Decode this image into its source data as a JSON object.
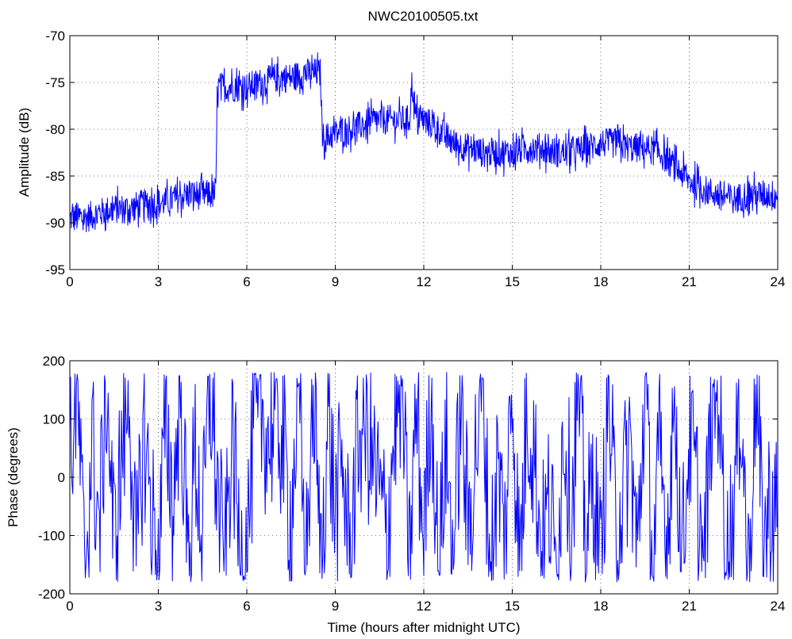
{
  "figure": {
    "title": "NWC20100505.txt"
  },
  "chart_data": [
    {
      "type": "line",
      "title": "NWC20100505.txt",
      "xlabel": "",
      "ylabel": "Amplitude (dB)",
      "xlim": [
        0,
        24
      ],
      "ylim": [
        -95,
        -70
      ],
      "xticks": [
        0,
        3,
        6,
        9,
        12,
        15,
        18,
        21,
        24
      ],
      "yticks": [
        -95,
        -90,
        -85,
        -80,
        -75,
        -70
      ],
      "grid": true,
      "line_color": "#0000ff",
      "series": [
        {
          "x": [
            0,
            0.5,
            1,
            1.5,
            2,
            2.5,
            3,
            3.5,
            4,
            4.5,
            4.95,
            5.0,
            5.5,
            6,
            6.5,
            7,
            7.5,
            8,
            8.5,
            8.55,
            8.6,
            9,
            9.5,
            10,
            10.5,
            11,
            11.5,
            11.6,
            11.7,
            12,
            12.5,
            13,
            13.5,
            14,
            14.5,
            15,
            15.5,
            16,
            16.5,
            17,
            17.5,
            18,
            18.5,
            19,
            19.5,
            20,
            20.5,
            21,
            21.5,
            22,
            22.5,
            23,
            23.5,
            24
          ],
          "y": [
            -89.5,
            -89.5,
            -89,
            -88.5,
            -88.5,
            -88,
            -88,
            -87.5,
            -87,
            -87,
            -87,
            -75.5,
            -75.5,
            -75.5,
            -75,
            -74.5,
            -74.5,
            -74,
            -74,
            -80,
            -81,
            -80.5,
            -80,
            -79.5,
            -79,
            -79,
            -79,
            -75,
            -78.5,
            -79,
            -80,
            -81.5,
            -82,
            -82.5,
            -82.5,
            -82.5,
            -82,
            -82,
            -82.5,
            -82.5,
            -82,
            -81.5,
            -81.5,
            -82,
            -82,
            -82.5,
            -84,
            -85.5,
            -86.5,
            -87,
            -87.5,
            -87,
            -87,
            -87
          ]
        }
      ]
    },
    {
      "type": "line",
      "title": "",
      "xlabel": "Time (hours after midnight UTC)",
      "ylabel": "Phase (degrees)",
      "xlim": [
        0,
        24
      ],
      "ylim": [
        -200,
        200
      ],
      "xticks": [
        0,
        3,
        6,
        9,
        12,
        15,
        18,
        21,
        24
      ],
      "yticks": [
        -200,
        -100,
        0,
        100,
        200
      ],
      "grid": true,
      "line_color": "#0000ff",
      "series": [
        {
          "x": [
            0,
            0.25,
            0.5,
            0.75,
            1,
            1.25,
            1.5,
            1.75,
            2,
            2.25,
            2.5,
            2.75,
            3,
            3.25,
            3.5,
            3.75,
            4,
            4.25,
            4.5,
            4.75,
            5,
            5.25,
            5.5,
            5.75,
            6,
            6.25,
            6.5,
            6.75,
            7,
            7.25,
            7.5,
            7.75,
            8,
            8.25,
            8.5,
            8.75,
            9,
            9.25,
            9.5,
            9.75,
            10,
            10.25,
            10.5,
            10.75,
            11,
            11.25,
            11.5,
            11.75,
            12,
            12.25,
            12.5,
            12.75,
            13,
            13.25,
            13.5,
            13.75,
            14,
            14.25,
            14.5,
            14.75,
            15,
            15.25,
            15.5,
            15.75,
            16,
            16.25,
            16.5,
            16.75,
            17,
            17.25,
            17.5,
            17.75,
            18,
            18.25,
            18.5,
            18.75,
            19,
            19.25,
            19.5,
            19.75,
            20,
            20.25,
            20.5,
            20.75,
            21,
            21.25,
            21.5,
            21.75,
            22,
            22.25,
            22.5,
            22.75,
            23,
            23.25,
            23.5,
            23.75,
            24
          ],
          "y": [
            20,
            150,
            -170,
            60,
            -90,
            170,
            -120,
            30,
            160,
            -160,
            80,
            -40,
            -170,
            120,
            -60,
            170,
            -150,
            40,
            -100,
            160,
            -20,
            -170,
            90,
            -130,
            -120,
            80,
            110,
            60,
            120,
            40,
            -80,
            150,
            -170,
            170,
            -160,
            100,
            -60,
            20,
            -140,
            60,
            90,
            30,
            -30,
            -100,
            80,
            170,
            -160,
            120,
            -120,
            170,
            -170,
            60,
            -150,
            130,
            -90,
            40,
            170,
            -170,
            20,
            -100,
            160,
            -160,
            120,
            40,
            -130,
            -40,
            -170,
            100,
            -60,
            160,
            -120,
            10,
            -170,
            150,
            -80,
            -30,
            60,
            -140,
            170,
            -170,
            40,
            -110,
            160,
            -160,
            80,
            -20,
            -170,
            120,
            170,
            -160,
            -60,
            150,
            -170,
            170,
            -120,
            -40,
            -80
          ]
        }
      ]
    }
  ]
}
